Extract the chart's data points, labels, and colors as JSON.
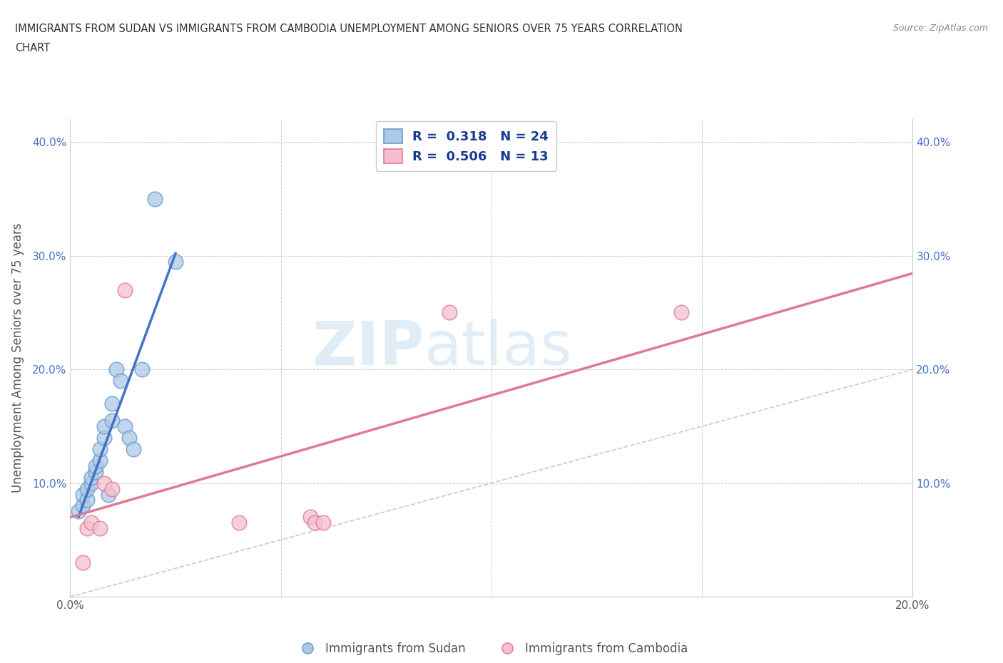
{
  "title_line1": "IMMIGRANTS FROM SUDAN VS IMMIGRANTS FROM CAMBODIA UNEMPLOYMENT AMONG SENIORS OVER 75 YEARS CORRELATION",
  "title_line2": "CHART",
  "source": "Source: ZipAtlas.com",
  "ylabel": "Unemployment Among Seniors over 75 years",
  "xlim": [
    0.0,
    0.2
  ],
  "ylim": [
    0.0,
    0.42
  ],
  "xticks": [
    0.0,
    0.05,
    0.1,
    0.15,
    0.2
  ],
  "xtick_labels": [
    "0.0%",
    "",
    "",
    "",
    "20.0%"
  ],
  "yticks": [
    0.0,
    0.1,
    0.2,
    0.3,
    0.4
  ],
  "ytick_labels_left": [
    "",
    "10.0%",
    "20.0%",
    "30.0%",
    "40.0%"
  ],
  "ytick_labels_right": [
    "",
    "10.0%",
    "20.0%",
    "30.0%",
    "40.0%"
  ],
  "sudan_color": "#adc9e8",
  "sudan_edge": "#6699cc",
  "cambodia_color": "#f5bfce",
  "cambodia_edge": "#e07898",
  "sudan_R": 0.318,
  "sudan_N": 24,
  "cambodia_R": 0.506,
  "cambodia_N": 13,
  "sudan_line_color": "#4472c4",
  "cambodia_line_color": "#e07898",
  "diagonal_color": "#bbbbbb",
  "watermark_zip": "ZIP",
  "watermark_atlas": "atlas",
  "legend_color": "#1a3c8f",
  "sudan_x": [
    0.002,
    0.003,
    0.003,
    0.004,
    0.004,
    0.005,
    0.005,
    0.006,
    0.006,
    0.007,
    0.007,
    0.008,
    0.008,
    0.009,
    0.01,
    0.01,
    0.011,
    0.012,
    0.013,
    0.014,
    0.015,
    0.017,
    0.02,
    0.025
  ],
  "sudan_y": [
    0.075,
    0.08,
    0.09,
    0.085,
    0.095,
    0.1,
    0.105,
    0.11,
    0.115,
    0.12,
    0.13,
    0.14,
    0.15,
    0.09,
    0.155,
    0.17,
    0.2,
    0.19,
    0.15,
    0.14,
    0.13,
    0.2,
    0.35,
    0.295
  ],
  "cambodia_x": [
    0.003,
    0.004,
    0.005,
    0.007,
    0.008,
    0.01,
    0.013,
    0.04,
    0.057,
    0.058,
    0.06,
    0.09,
    0.145
  ],
  "cambodia_y": [
    0.03,
    0.06,
    0.065,
    0.06,
    0.1,
    0.095,
    0.27,
    0.065,
    0.07,
    0.065,
    0.065,
    0.25,
    0.25
  ],
  "sudan_line_x": [
    0.003,
    0.02
  ],
  "sudan_line_y": [
    0.09,
    0.2
  ],
  "cambodia_line_x": [
    0.0,
    0.2
  ],
  "cambodia_line_y": [
    0.085,
    0.255
  ]
}
